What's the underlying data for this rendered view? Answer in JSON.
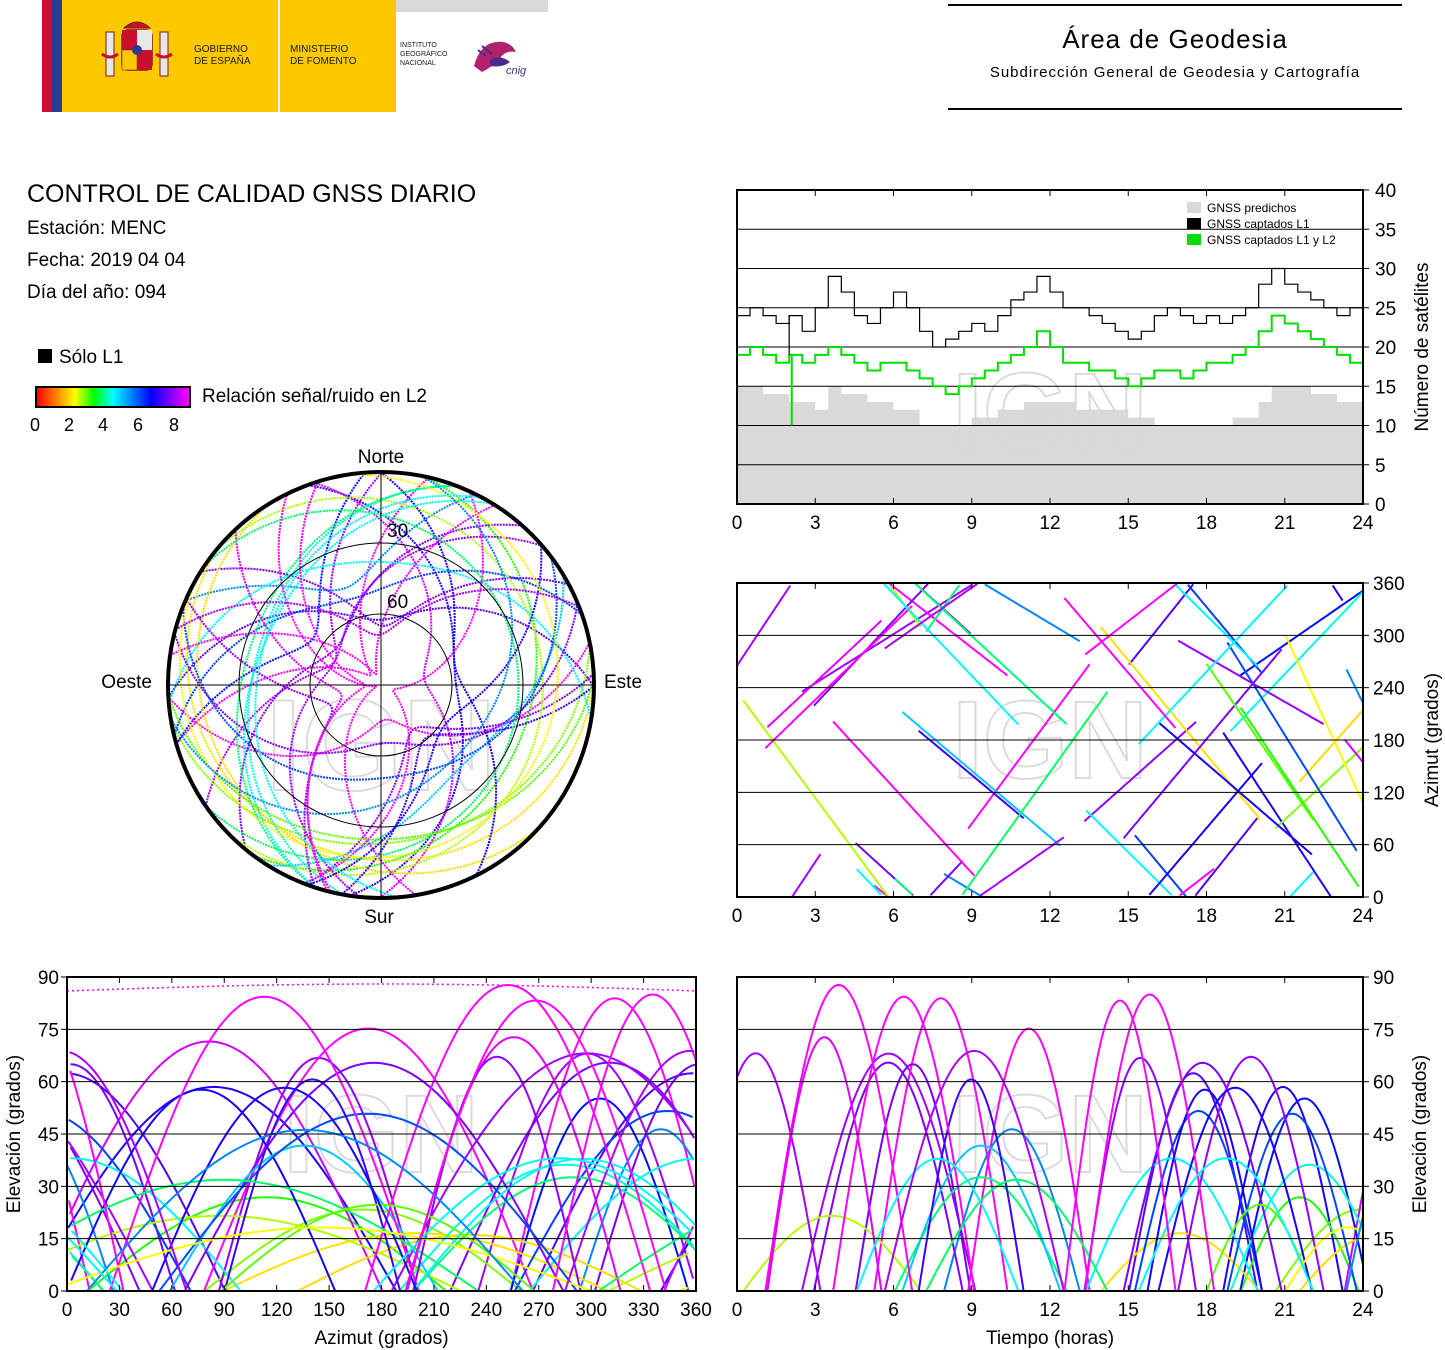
{
  "header": {
    "gov_line1": "GOBIERNO",
    "gov_line2": "DE ESPAÑA",
    "ministry_line1": "MINISTERIO",
    "ministry_line2": "DE FOMENTO",
    "ign_line1": "INSTITUTO",
    "ign_line2": "GEOGRÁFICO",
    "ign_line3": "NACIONAL",
    "cnig": "cnig",
    "area_title": "Área de Geodesia",
    "area_subtitle": "Subdirección General de Geodesia y Cartografía"
  },
  "info": {
    "title": "CONTROL DE CALIDAD GNSS DIARIO",
    "station": "Estación: MENC",
    "date": "Fecha: 2019 04 04",
    "doy": "Día del año: 094"
  },
  "legend": {
    "l1_only": "Sólo L1",
    "snr_label": "Relación señal/ruido en L2",
    "snr_ticks": [
      "0",
      "2",
      "4",
      "6",
      "8"
    ]
  },
  "watermark": "IGN",
  "colors": {
    "predicted": "#d9d9d9",
    "l1": "#000000",
    "l1l2": "#00e000",
    "snr_scale": [
      "#ff0000",
      "#ff8000",
      "#ffff00",
      "#00ff00",
      "#00ffff",
      "#0080ff",
      "#0000ff",
      "#8000ff",
      "#ff00ff"
    ]
  },
  "chart_data": [
    {
      "type": "line",
      "id": "satellite-count",
      "ylabel": "Número de satélites",
      "xlim": [
        0,
        24
      ],
      "ylim": [
        0,
        40
      ],
      "x_ticks": [
        "0",
        "3",
        "6",
        "9",
        "12",
        "15",
        "18",
        "21",
        "24"
      ],
      "y_ticks": [
        "0",
        "5",
        "10",
        "15",
        "20",
        "25",
        "30",
        "35",
        "40"
      ],
      "grid": true,
      "legend_position": "top-right",
      "legend": [
        "GNSS predichos",
        "GNSS captados L1",
        "GNSS captados L1 y L2"
      ],
      "series": [
        {
          "name": "GNSS predichos",
          "x": [
            0,
            1,
            2,
            3,
            3.5,
            4,
            5,
            6,
            7,
            8,
            9,
            10,
            11,
            12,
            13,
            14,
            15,
            16,
            17,
            18,
            19,
            20,
            20.5,
            21,
            22,
            23,
            24
          ],
          "y": [
            15,
            14,
            13,
            12,
            15,
            14,
            13,
            12,
            10,
            10,
            11,
            12,
            13,
            13,
            12,
            12,
            11,
            10,
            10,
            10,
            11,
            13,
            15,
            15,
            14,
            13,
            14
          ]
        },
        {
          "name": "GNSS captados L1",
          "x": [
            0,
            0.5,
            1,
            1.5,
            2,
            2.5,
            3,
            3.5,
            4,
            4.5,
            5,
            5.5,
            6,
            6.5,
            7,
            7.5,
            8,
            8.5,
            9,
            9.5,
            10,
            10.5,
            11,
            11.5,
            12,
            12.5,
            13,
            13.5,
            14,
            14.5,
            15,
            15.5,
            16,
            16.5,
            17,
            17.5,
            18,
            18.5,
            19,
            19.5,
            20,
            20.5,
            21,
            21.5,
            22,
            22.5,
            23,
            23.5,
            24
          ],
          "y": [
            24,
            25,
            24,
            23,
            24,
            22,
            25,
            29,
            27,
            24,
            23,
            25,
            27,
            25,
            22,
            20,
            21,
            22,
            23,
            22,
            24,
            26,
            27,
            29,
            27,
            25,
            25,
            24,
            23,
            22,
            21,
            22,
            24,
            25,
            24,
            23,
            24,
            23,
            24,
            25,
            28,
            30,
            28,
            27,
            26,
            25,
            24,
            25,
            24
          ]
        },
        {
          "name": "GNSS captados L1 y L2",
          "x": [
            0,
            0.5,
            1,
            1.5,
            2,
            2.5,
            3,
            3.5,
            4,
            4.5,
            5,
            5.5,
            6,
            6.5,
            7,
            7.5,
            8,
            8.5,
            9,
            9.5,
            10,
            10.5,
            11,
            11.5,
            12,
            12.5,
            13,
            13.5,
            14,
            14.5,
            15,
            15.5,
            16,
            16.5,
            17,
            17.5,
            18,
            18.5,
            19,
            19.5,
            20,
            20.5,
            21,
            21.5,
            22,
            22.5,
            23,
            23.5,
            24
          ],
          "y": [
            19,
            20,
            19,
            18,
            19,
            18,
            19,
            20,
            19,
            18,
            17,
            18,
            18,
            17,
            16,
            15,
            14,
            15,
            16,
            17,
            18,
            19,
            20,
            22,
            20,
            18,
            18,
            17,
            17,
            16,
            15,
            16,
            17,
            17,
            16,
            17,
            18,
            18,
            19,
            20,
            22,
            24,
            23,
            22,
            21,
            20,
            19,
            18,
            19
          ]
        }
      ]
    },
    {
      "type": "scatter",
      "id": "skyplot",
      "labels": {
        "north": "Norte",
        "south": "Sur",
        "west": "Oeste",
        "east": "Este",
        "ring30": "30",
        "ring60": "60"
      },
      "rlim": [
        0,
        90
      ],
      "color_by": "snr_l2",
      "tracks": 24
    },
    {
      "type": "scatter",
      "id": "azimuth-time",
      "ylabel": "Azimut (grados)",
      "xlim": [
        0,
        24
      ],
      "ylim": [
        0,
        360
      ],
      "x_ticks": [
        "0",
        "3",
        "6",
        "9",
        "12",
        "15",
        "18",
        "21",
        "24"
      ],
      "y_ticks": [
        "0",
        "60",
        "120",
        "180",
        "240",
        "300",
        "360"
      ],
      "grid": true,
      "color_by": "snr_l2"
    },
    {
      "type": "scatter",
      "id": "elevation-azimuth",
      "xlabel": "Azimut (grados)",
      "ylabel": "Elevación (grados)",
      "xlim": [
        0,
        360
      ],
      "ylim": [
        0,
        90
      ],
      "x_ticks": [
        "0",
        "30",
        "60",
        "90",
        "120",
        "150",
        "180",
        "210",
        "240",
        "270",
        "300",
        "330",
        "360"
      ],
      "y_ticks": [
        "0",
        "15",
        "30",
        "45",
        "60",
        "75",
        "90"
      ],
      "grid": true,
      "color_by": "snr_l2"
    },
    {
      "type": "scatter",
      "id": "elevation-time",
      "xlabel": "Tiempo (horas)",
      "ylabel": "Elevación (grados)",
      "xlim": [
        0,
        24
      ],
      "ylim": [
        0,
        90
      ],
      "x_ticks": [
        "0",
        "3",
        "6",
        "9",
        "12",
        "15",
        "18",
        "21",
        "24"
      ],
      "y_ticks": [
        "0",
        "15",
        "30",
        "45",
        "60",
        "75",
        "90"
      ],
      "grid": true,
      "color_by": "snr_l2"
    }
  ]
}
